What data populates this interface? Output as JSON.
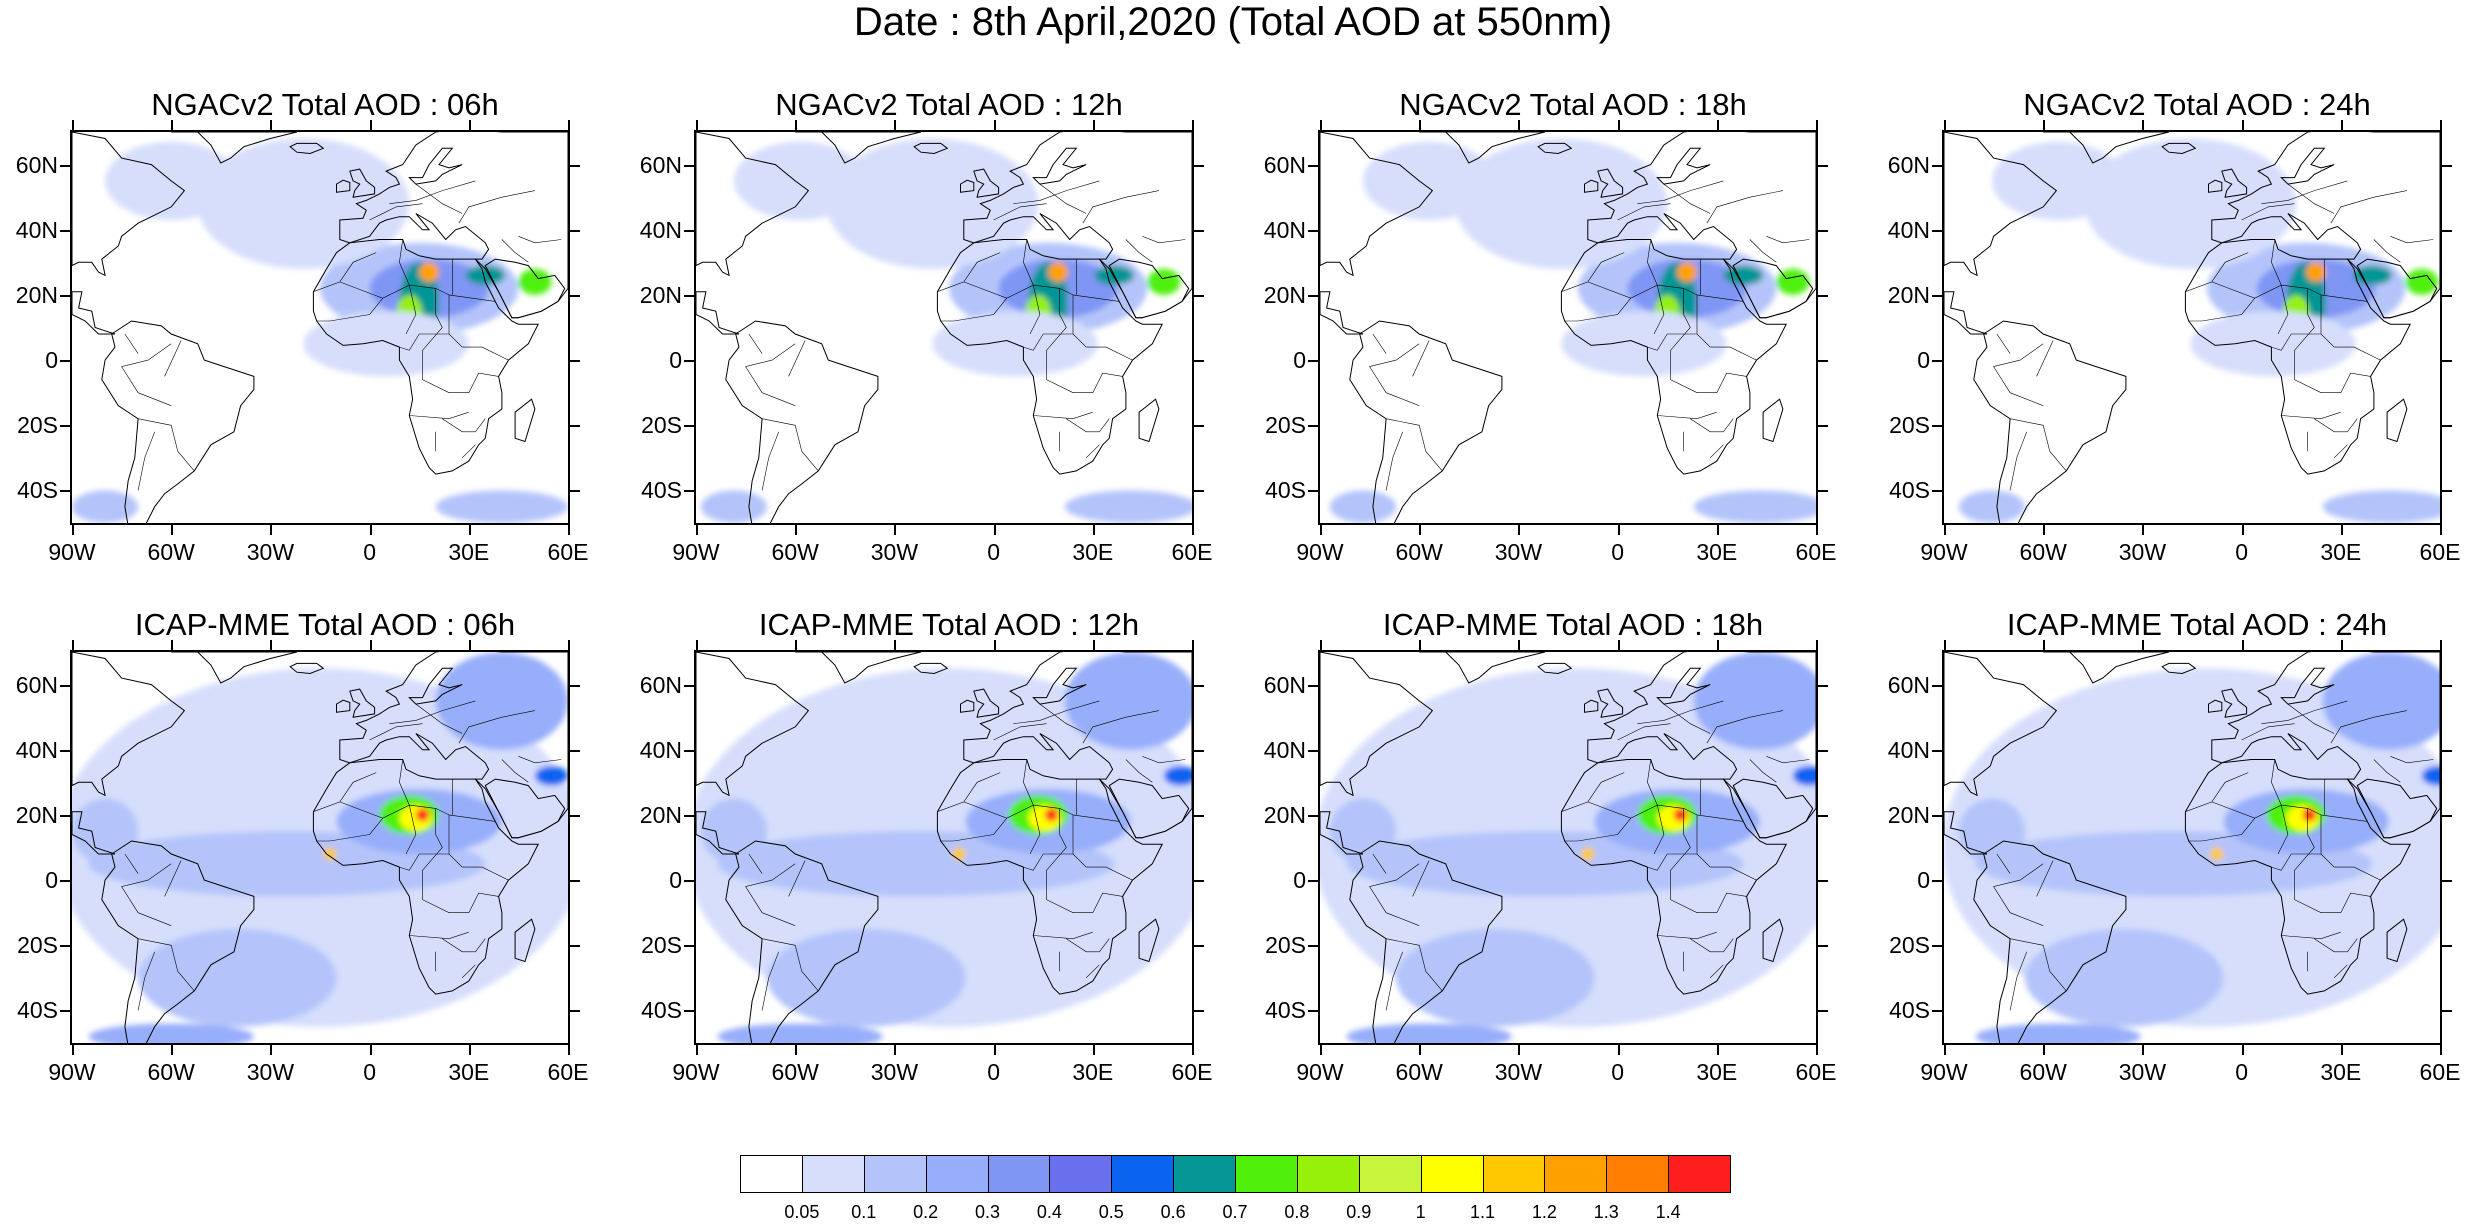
{
  "title": "Date : 8th April,2020 (Total AOD at 550nm)",
  "panels": [
    {
      "title": "NGACv2 Total AOD : 06h",
      "model": "NGACv2",
      "hour": "06h"
    },
    {
      "title": "NGACv2 Total AOD : 12h",
      "model": "NGACv2",
      "hour": "12h"
    },
    {
      "title": "NGACv2 Total AOD : 18h",
      "model": "NGACv2",
      "hour": "18h"
    },
    {
      "title": "NGACv2 Total AOD : 24h",
      "model": "NGACv2",
      "hour": "24h"
    },
    {
      "title": "ICAP-MME Total AOD : 06h",
      "model": "ICAP-MME",
      "hour": "06h"
    },
    {
      "title": "ICAP-MME Total AOD : 12h",
      "model": "ICAP-MME",
      "hour": "12h"
    },
    {
      "title": "ICAP-MME Total AOD : 18h",
      "model": "ICAP-MME",
      "hour": "18h"
    },
    {
      "title": "ICAP-MME Total AOD : 24h",
      "model": "ICAP-MME",
      "hour": "24h"
    }
  ],
  "lat_labels": [
    "60N",
    "40N",
    "20N",
    "0",
    "20S",
    "40S"
  ],
  "lon_labels": [
    "90W",
    "60W",
    "30W",
    "0",
    "30E",
    "60E"
  ],
  "lat_values": [
    60,
    40,
    20,
    0,
    -20,
    -40
  ],
  "lon_values": [
    -90,
    -60,
    -30,
    0,
    30,
    60
  ],
  "map_extent": {
    "lon_min": -90,
    "lon_max": 60,
    "lat_min": -50,
    "lat_max": 70
  },
  "colorbar": {
    "labels": [
      "0.05",
      "0.1",
      "0.2",
      "0.3",
      "0.4",
      "0.5",
      "0.6",
      "0.7",
      "0.8",
      "0.9",
      "1",
      "1.1",
      "1.2",
      "1.3",
      "1.4"
    ],
    "colors": [
      "#ffffff",
      "#d6defc",
      "#b4c4fa",
      "#97aefa",
      "#7f96f5",
      "#6870ed",
      "#0a64f0",
      "#059696",
      "#50f00a",
      "#96f00a",
      "#c8f53c",
      "#ffff00",
      "#ffc800",
      "#ffa000",
      "#ff7d00",
      "#ff1e1e"
    ]
  }
}
